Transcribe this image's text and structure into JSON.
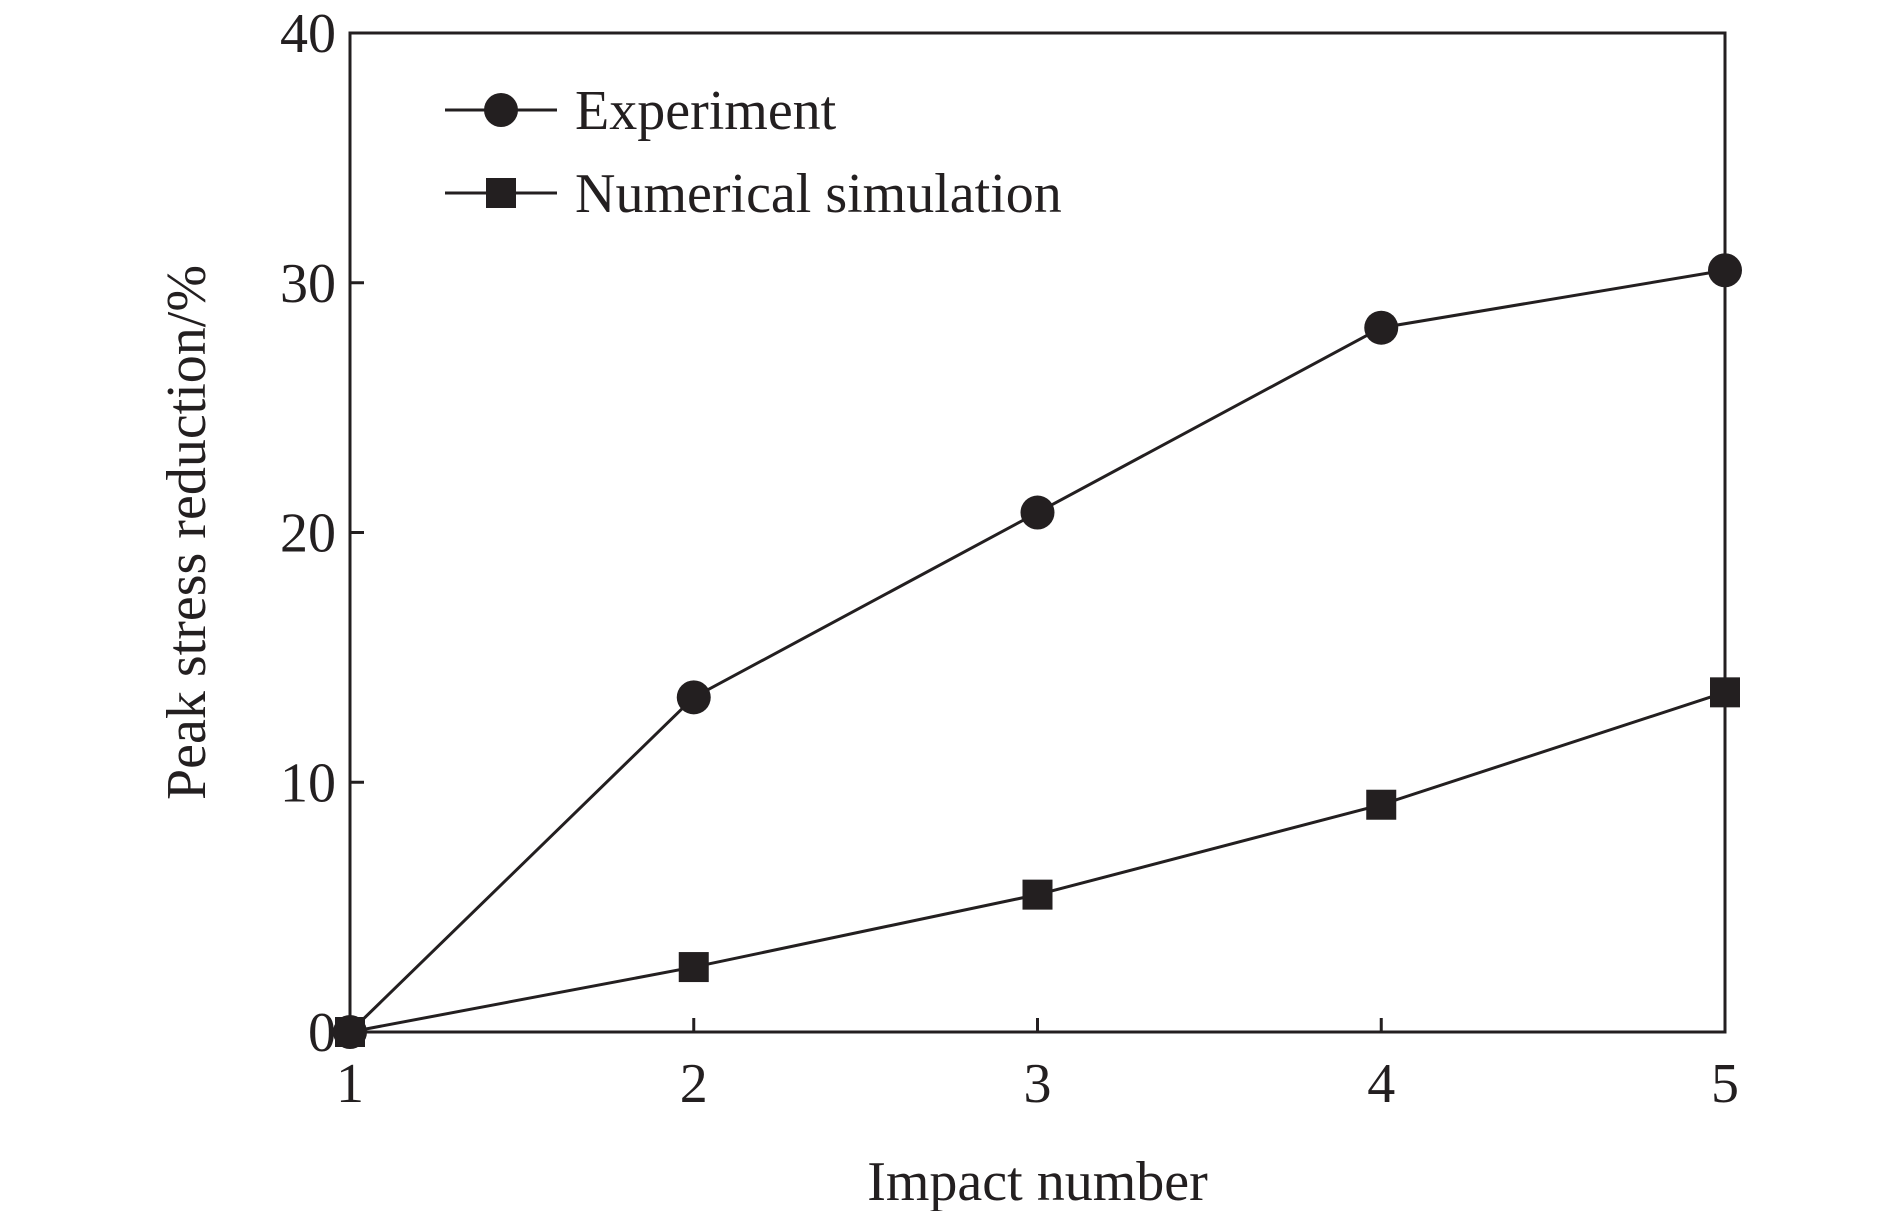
{
  "chart_data": {
    "type": "line",
    "title": "",
    "xlabel": "Impact number",
    "ylabel": "Peak stress reduction/%",
    "x": [
      1,
      2,
      3,
      4,
      5
    ],
    "xticks": [
      "1",
      "2",
      "3",
      "4",
      "5"
    ],
    "yticks": [
      "0",
      "10",
      "20",
      "30",
      "40"
    ],
    "xlim": [
      1,
      5
    ],
    "ylim": [
      0,
      40
    ],
    "grid": false,
    "legend_position": "top-left",
    "series": [
      {
        "name": "Experiment",
        "marker": "circle",
        "color": "#231f20",
        "values": [
          0,
          13.4,
          20.8,
          28.2,
          30.5
        ]
      },
      {
        "name": "Numerical simulation",
        "marker": "square",
        "color": "#231f20",
        "values": [
          0,
          2.6,
          5.5,
          9.1,
          13.6
        ]
      }
    ]
  }
}
